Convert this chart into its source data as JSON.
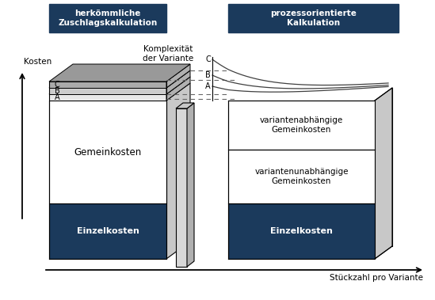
{
  "title_left": "herkömmliche\nZuschlagskalkulation",
  "title_right": "prozessorientierte\nKalkulation",
  "title_bg": "#1b3a5c",
  "title_fg": "#ffffff",
  "label_kosten": "Kosten",
  "label_stueckzahl": "Stückzahl pro Variante",
  "label_komplexitaet": "Komplexität\nder Variante",
  "label_gemeinkosten": "Gemeinkosten",
  "label_einzelkosten_left": "Einzelkosten",
  "label_einzelkosten_right": "Einzelkosten",
  "label_varianten_abh": "variantenabhängige\nGemeinkosten",
  "label_varianten_unabh": "variantenunabhängige\nGemeinkosten",
  "dark_blue": "#1b3a5c",
  "white": "#ffffff",
  "curve_color": "#555555",
  "dashed_color": "#666666",
  "col_front": "#d4d4d4",
  "col_right": "#a8a8a8",
  "col_top": "#bcbcbc",
  "slab_colors": [
    "#e8e8e8",
    "#cccccc",
    "#aaaaaa"
  ],
  "slab_top_colors": [
    "#dddddd",
    "#c0c0c0",
    "#999999"
  ]
}
